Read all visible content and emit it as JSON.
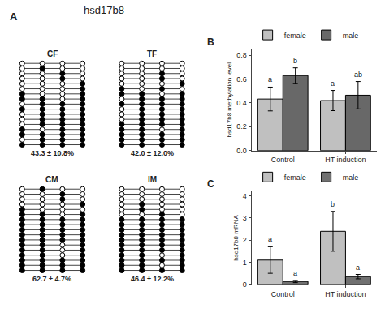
{
  "title": "hsd17b8",
  "chart_data": [
    {
      "type": "dot_pattern",
      "panel_label": "A",
      "title": "CF",
      "annotations": [
        "43.3 ± 10.8%"
      ],
      "cells": [
        [
          0,
          0,
          0,
          0
        ],
        [
          0,
          1,
          0,
          0
        ],
        [
          0,
          0,
          1,
          0
        ],
        [
          0,
          0,
          1,
          0
        ],
        [
          0,
          0,
          0,
          1
        ],
        [
          0,
          0,
          0,
          1
        ],
        [
          1,
          0,
          0,
          1
        ],
        [
          1,
          1,
          0,
          1
        ],
        [
          0,
          1,
          1,
          1
        ],
        [
          1,
          1,
          1,
          1
        ],
        [
          0,
          1,
          1,
          1
        ],
        [
          0,
          1,
          1,
          1
        ],
        [
          0,
          1,
          1,
          1
        ],
        [
          1,
          0,
          1,
          1
        ],
        [
          1,
          1,
          1,
          1
        ],
        [
          0,
          1,
          1,
          1
        ],
        [
          1,
          1,
          1,
          1
        ]
      ]
    },
    {
      "type": "dot_pattern",
      "title": "TF",
      "annotations": [
        "42.0 ± 12.0%"
      ],
      "cells": [
        [
          0,
          0,
          0,
          0
        ],
        [
          0,
          0,
          0,
          0
        ],
        [
          0,
          0,
          1,
          0
        ],
        [
          0,
          0,
          1,
          0
        ],
        [
          0,
          0,
          0,
          1
        ],
        [
          1,
          0,
          1,
          0
        ],
        [
          1,
          1,
          0,
          1
        ],
        [
          0,
          1,
          1,
          1
        ],
        [
          1,
          1,
          1,
          1
        ],
        [
          0,
          1,
          1,
          1
        ],
        [
          0,
          1,
          1,
          1
        ],
        [
          0,
          1,
          1,
          1
        ],
        [
          1,
          1,
          1,
          1
        ],
        [
          1,
          1,
          0,
          1
        ],
        [
          1,
          1,
          1,
          1
        ],
        [
          1,
          1,
          1,
          1
        ],
        [
          1,
          1,
          1,
          1
        ]
      ]
    },
    {
      "type": "dot_pattern",
      "title": "CM",
      "annotations": [
        "62.7 ± 4.7%"
      ],
      "cells": [
        [
          0,
          1,
          0,
          0
        ],
        [
          0,
          0,
          1,
          0
        ],
        [
          0,
          0,
          1,
          0
        ],
        [
          0,
          0,
          0,
          1
        ],
        [
          1,
          0,
          0,
          0
        ],
        [
          1,
          1,
          0,
          1
        ],
        [
          1,
          1,
          1,
          1
        ],
        [
          1,
          1,
          1,
          1
        ],
        [
          1,
          1,
          1,
          1
        ],
        [
          1,
          1,
          1,
          1
        ],
        [
          1,
          1,
          1,
          1
        ],
        [
          1,
          1,
          0,
          1
        ],
        [
          1,
          1,
          0,
          1
        ],
        [
          1,
          1,
          0,
          1
        ],
        [
          1,
          1,
          1,
          1
        ],
        [
          1,
          1,
          1,
          1
        ],
        [
          1,
          1,
          1,
          1
        ]
      ]
    },
    {
      "type": "dot_pattern",
      "title": "IM",
      "annotations": [
        "46.4 ± 12.2%"
      ],
      "cells": [
        [
          0,
          0,
          0,
          0
        ],
        [
          0,
          0,
          0,
          0
        ],
        [
          0,
          0,
          0,
          0
        ],
        [
          0,
          1,
          0,
          0
        ],
        [
          0,
          1,
          0,
          0
        ],
        [
          0,
          0,
          1,
          0
        ],
        [
          1,
          1,
          1,
          1
        ],
        [
          1,
          1,
          1,
          1
        ],
        [
          1,
          1,
          1,
          1
        ],
        [
          1,
          1,
          1,
          1
        ],
        [
          1,
          1,
          1,
          1
        ],
        [
          1,
          1,
          1,
          1
        ],
        [
          1,
          1,
          1,
          1
        ],
        [
          1,
          1,
          0,
          1
        ],
        [
          1,
          1,
          1,
          1
        ],
        [
          1,
          1,
          0,
          1
        ],
        [
          1,
          1,
          1,
          1
        ]
      ]
    },
    {
      "type": "bar",
      "panel_label": "B",
      "categories": [
        "Control",
        "HT induction"
      ],
      "series": [
        {
          "name": "female",
          "color": "#c0c0c0",
          "values": [
            0.433,
            0.42
          ],
          "errors": [
            0.1,
            0.085
          ],
          "annotations": [
            "a",
            "a"
          ]
        },
        {
          "name": "male",
          "color": "#686868",
          "values": [
            0.63,
            0.465
          ],
          "errors": [
            0.065,
            0.115
          ],
          "annotations": [
            "b",
            "ab"
          ]
        }
      ],
      "ylabel": "hsd17b8 methylation level",
      "ylim": [
        0.0,
        0.85
      ],
      "yticks": [
        {
          "value": 0.0,
          "label": "0.0"
        },
        0.2,
        0.4,
        0.6,
        0.8
      ],
      "legend": "upper left",
      "grid": false
    },
    {
      "type": "bar",
      "panel_label": "C",
      "categories": [
        "Control",
        "HT induction"
      ],
      "series": [
        {
          "name": "female",
          "color": "#c0c0c0",
          "values": [
            1.1,
            2.4
          ],
          "errors": [
            0.6,
            0.9
          ],
          "annotations": [
            "a",
            "b"
          ]
        },
        {
          "name": "male",
          "color": "#707070",
          "values": [
            0.13,
            0.35
          ],
          "errors": [
            0.05,
            0.1
          ],
          "annotations": [
            "a",
            "a"
          ]
        }
      ],
      "ylabel": "hsd17b8 mRNA",
      "ylim": [
        0.0,
        4.2
      ],
      "yticks": [
        0,
        1,
        2,
        3,
        4
      ],
      "legend": "upper left",
      "grid": false
    }
  ]
}
